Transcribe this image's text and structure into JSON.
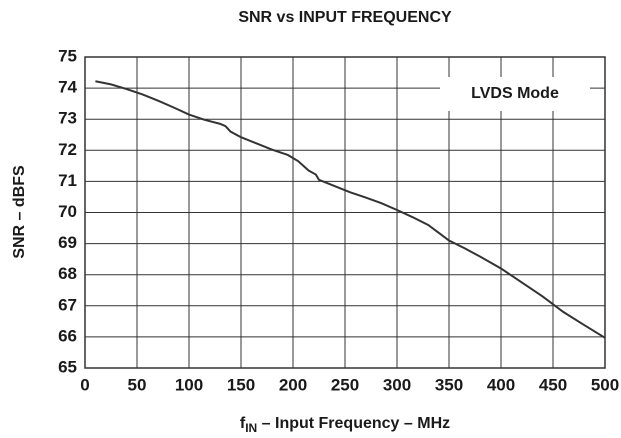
{
  "chart_data": {
    "type": "line",
    "title": "SNR vs INPUT FREQUENCY",
    "x_label": {
      "main": "f",
      "sub": "IN",
      "rest": " – Input Frequency – MHz"
    },
    "y_label": "SNR – dBFS",
    "annotation": "LVDS Mode",
    "grid": true,
    "xlim": [
      0,
      500
    ],
    "xticks": [
      0,
      50,
      100,
      150,
      200,
      250,
      300,
      350,
      400,
      450,
      500
    ],
    "ylim": [
      65,
      75
    ],
    "yticks": [
      65,
      66,
      67,
      68,
      69,
      70,
      71,
      72,
      73,
      74,
      75
    ],
    "series": [
      {
        "color": "#333333",
        "x": [
          10,
          25,
          40,
          55,
          70,
          85,
          100,
          115,
          130,
          135,
          140,
          150,
          165,
          180,
          195,
          205,
          215,
          222,
          225,
          240,
          255,
          270,
          285,
          300,
          315,
          330,
          340,
          350,
          365,
          380,
          400,
          420,
          440,
          460,
          480,
          500
        ],
        "values": [
          74.22,
          74.12,
          73.97,
          73.8,
          73.6,
          73.38,
          73.15,
          72.98,
          72.85,
          72.78,
          72.6,
          72.42,
          72.22,
          72.02,
          71.85,
          71.65,
          71.35,
          71.22,
          71.05,
          70.85,
          70.65,
          70.48,
          70.3,
          70.08,
          69.85,
          69.6,
          69.35,
          69.1,
          68.85,
          68.58,
          68.2,
          67.75,
          67.3,
          66.8,
          66.38,
          65.97
        ]
      }
    ]
  }
}
